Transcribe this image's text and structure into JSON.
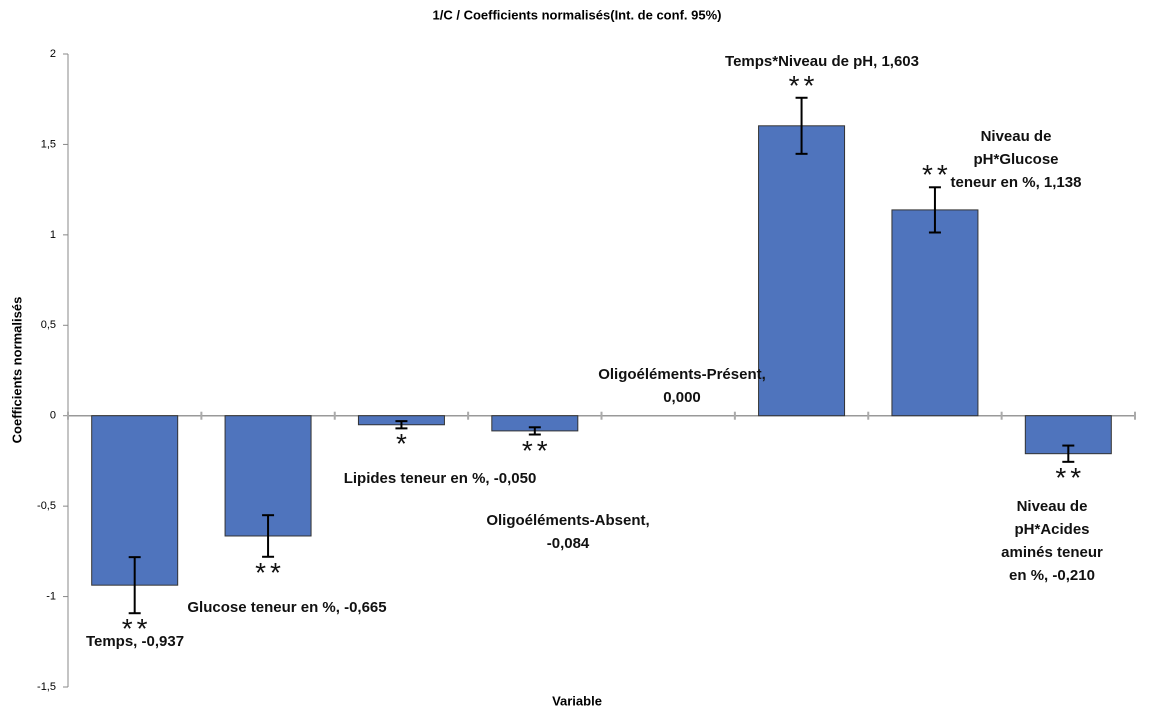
{
  "chart_data": {
    "type": "bar",
    "title": "1/C / Coefficients normalisés(Int. de conf. 95%)",
    "x_label": "Variable",
    "y_label": "Coefficients normalisés",
    "values": [
      -0.937,
      -0.665,
      -0.05,
      -0.084,
      0,
      1.603,
      1.138,
      -0.21
    ],
    "value_labels": [
      "Temps, -0,937",
      "Glucose teneur en %, -0,665",
      "Lipides teneur en %, -0,050",
      "Oligoéléments-Absent,\n-0,084",
      "Oligoéléments-Présent,\n0,000",
      "Temps*Niveau de pH, 1,603",
      "Niveau de pH*Glucose\nteneur en %, 1,138",
      "Niveau de pH*Acides\naminés teneur en %, -0,210"
    ],
    "errors": [
      0.155,
      0.115,
      0.02,
      0.02,
      null,
      0.155,
      0.125,
      0.045
    ],
    "significance": [
      "**",
      "**",
      "*",
      "**",
      null,
      "**",
      "**",
      "**"
    ],
    "color": "#4f74bd",
    "ylim": [
      -1.5,
      2
    ],
    "yticks": [
      {
        "value": -1.5,
        "label": "-1,5"
      },
      -1,
      {
        "value": -0.5,
        "label": "-0,5"
      },
      0,
      {
        "value": 0.5,
        "label": "0,5"
      },
      1,
      {
        "value": 1.5,
        "label": "1,5"
      },
      2
    ],
    "grid": false
  }
}
